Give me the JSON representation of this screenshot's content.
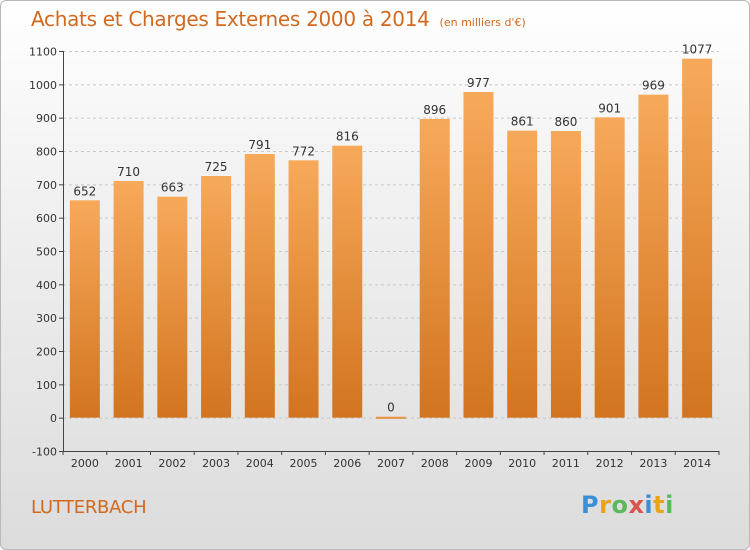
{
  "header": {
    "title": "Achats et Charges Externes 2000 à 2014",
    "unit": "(en milliers d'€)"
  },
  "footer": {
    "place": "LUTTERBACH"
  },
  "logo": {
    "letters": [
      {
        "ch": "P",
        "color": "#3a8fd6"
      },
      {
        "ch": "r",
        "color": "#e8a317"
      },
      {
        "ch": "o",
        "color": "#5cb85c"
      },
      {
        "ch": "x",
        "color": "#d9534f"
      },
      {
        "ch": "i",
        "color": "#3a8fd6"
      },
      {
        "ch": "t",
        "color": "#e8a317"
      },
      {
        "ch": "i",
        "color": "#5cb85c"
      }
    ]
  },
  "colors": {
    "bar_top": "#f7a95a",
    "bar_bottom": "#d2741f",
    "text_orange": "#d2691e",
    "axis": "#444444"
  },
  "chart_data": {
    "type": "bar",
    "title": "Achats et Charges Externes 2000 à 2014",
    "subtitle": "(en milliers d'€)",
    "categories": [
      "2000",
      "2001",
      "2002",
      "2003",
      "2004",
      "2005",
      "2006",
      "2007",
      "2008",
      "2009",
      "2010",
      "2011",
      "2012",
      "2013",
      "2014"
    ],
    "values": [
      652,
      710,
      663,
      725,
      791,
      772,
      816,
      0,
      896,
      977,
      861,
      860,
      901,
      969,
      1077
    ],
    "ylim": [
      -100,
      1100
    ],
    "yticks": [
      -100,
      0,
      100,
      200,
      300,
      400,
      500,
      600,
      700,
      800,
      900,
      1000,
      1100
    ],
    "grid": true
  }
}
